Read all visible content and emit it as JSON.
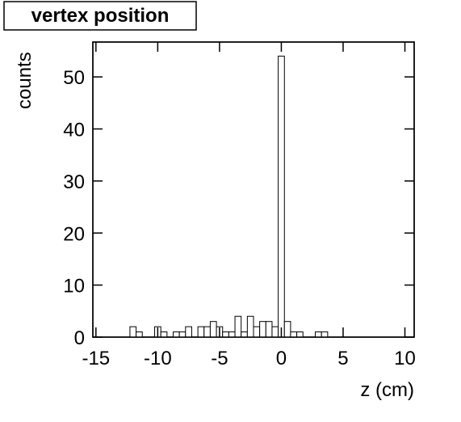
{
  "chart_data": {
    "type": "histogram",
    "title": "vertex position",
    "x_label": "z (cm)",
    "y_label": "counts",
    "bins": [
      -15.25,
      -14.75,
      -14.25,
      -13.75,
      -13.25,
      -12.75,
      -12.25,
      -11.75,
      -11.25,
      -10.75,
      -10.25,
      -9.75,
      -9.25,
      -8.75,
      -8.25,
      -7.75,
      -7.25,
      -6.75,
      -6.25,
      -5.75,
      -5.25,
      -4.75,
      -4.25,
      -3.75,
      -3.25,
      -2.75,
      -2.25,
      -1.75,
      -1.25,
      -0.75,
      -0.25,
      0.25,
      0.75,
      1.25,
      1.75,
      2.25,
      2.75,
      3.25,
      3.75,
      4.25,
      4.75,
      5.25,
      5.75,
      6.25,
      6.75,
      7.25,
      7.75,
      8.25,
      8.75,
      9.25,
      9.75,
      10.25,
      10.75
    ],
    "counts": [
      0,
      0,
      0,
      0,
      0,
      0,
      2,
      1,
      0,
      0,
      2,
      1,
      0,
      1,
      1,
      2,
      0,
      2,
      2,
      3,
      2,
      1,
      1,
      4,
      1,
      4,
      2,
      3,
      3,
      2,
      54,
      3,
      1,
      1,
      0,
      0,
      1,
      1,
      0,
      0,
      0,
      0,
      0,
      0,
      0,
      0,
      0,
      0,
      0,
      0,
      0,
      0
    ],
    "color": "#ffffff",
    "xlim": [
      -15.25,
      10.75
    ],
    "xticks": [
      -15,
      -10,
      -5,
      0,
      5,
      10
    ],
    "ylim": [
      0,
      56.7
    ],
    "yticks": [
      0,
      10,
      20,
      30,
      40,
      50
    ]
  }
}
